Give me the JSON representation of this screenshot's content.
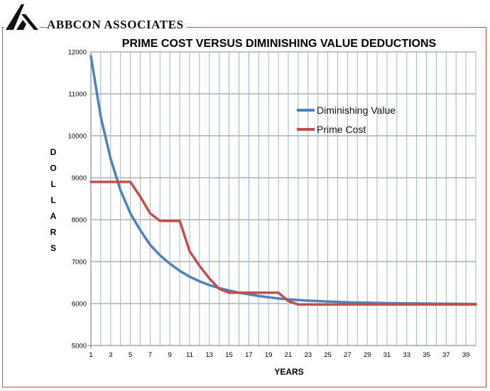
{
  "header": {
    "company": "ABBCON ASSOCIATES",
    "logo_color": "#111111",
    "frame_color": "#c0504d"
  },
  "chart_data": {
    "type": "line",
    "title": "PRIME COST VERSUS DIMINISHING VALUE DEDUCTIONS",
    "xlabel": "YEARS",
    "ylabel": "DOLLARS",
    "ylabel_letters": [
      "D",
      "O",
      "L",
      "L",
      "A",
      "R",
      "S"
    ],
    "xlim": [
      1,
      40
    ],
    "ylim": [
      5000,
      12000
    ],
    "yticks": [
      5000,
      6000,
      7000,
      8000,
      9000,
      10000,
      11000,
      12000
    ],
    "xticks": [
      1,
      3,
      5,
      7,
      9,
      11,
      13,
      15,
      17,
      19,
      21,
      23,
      25,
      27,
      29,
      31,
      33,
      35,
      37,
      39
    ],
    "grid": true,
    "legend_position": "upper-right",
    "series": [
      {
        "name": "Diminishing Value",
        "color": "#4f81bd",
        "x": [
          1,
          2,
          3,
          4,
          5,
          6,
          7,
          8,
          9,
          10,
          11,
          12,
          13,
          14,
          15,
          16,
          17,
          18,
          19,
          20,
          21,
          22,
          23,
          24,
          25,
          26,
          27,
          28,
          29,
          30,
          31,
          32,
          33,
          34,
          35,
          36,
          37,
          38,
          39,
          40
        ],
        "y": [
          11900,
          10450,
          9450,
          8700,
          8150,
          7750,
          7400,
          7150,
          6950,
          6780,
          6640,
          6530,
          6440,
          6370,
          6310,
          6260,
          6220,
          6180,
          6150,
          6120,
          6100,
          6085,
          6070,
          6060,
          6050,
          6040,
          6030,
          6025,
          6020,
          6015,
          6010,
          6007,
          6005,
          6003,
          6000,
          5998,
          5996,
          5994,
          5992,
          5990
        ]
      },
      {
        "name": "Prime Cost",
        "color": "#c0504d",
        "x": [
          1,
          2,
          3,
          4,
          5,
          6,
          7,
          8,
          9,
          10,
          11,
          12,
          13,
          14,
          15,
          16,
          17,
          18,
          19,
          20,
          21,
          22,
          23,
          24,
          25,
          26,
          27,
          28,
          29,
          30,
          31,
          32,
          33,
          34,
          35,
          36,
          37,
          38,
          39,
          40
        ],
        "y": [
          8900,
          8900,
          8900,
          8900,
          8900,
          8550,
          8150,
          7970,
          7970,
          7970,
          7250,
          6900,
          6600,
          6350,
          6260,
          6260,
          6260,
          6260,
          6260,
          6260,
          6060,
          5980,
          5980,
          5980,
          5980,
          5980,
          5980,
          5980,
          5980,
          5980,
          5980,
          5980,
          5980,
          5980,
          5980,
          5980,
          5980,
          5980,
          5980,
          5980
        ]
      }
    ]
  }
}
